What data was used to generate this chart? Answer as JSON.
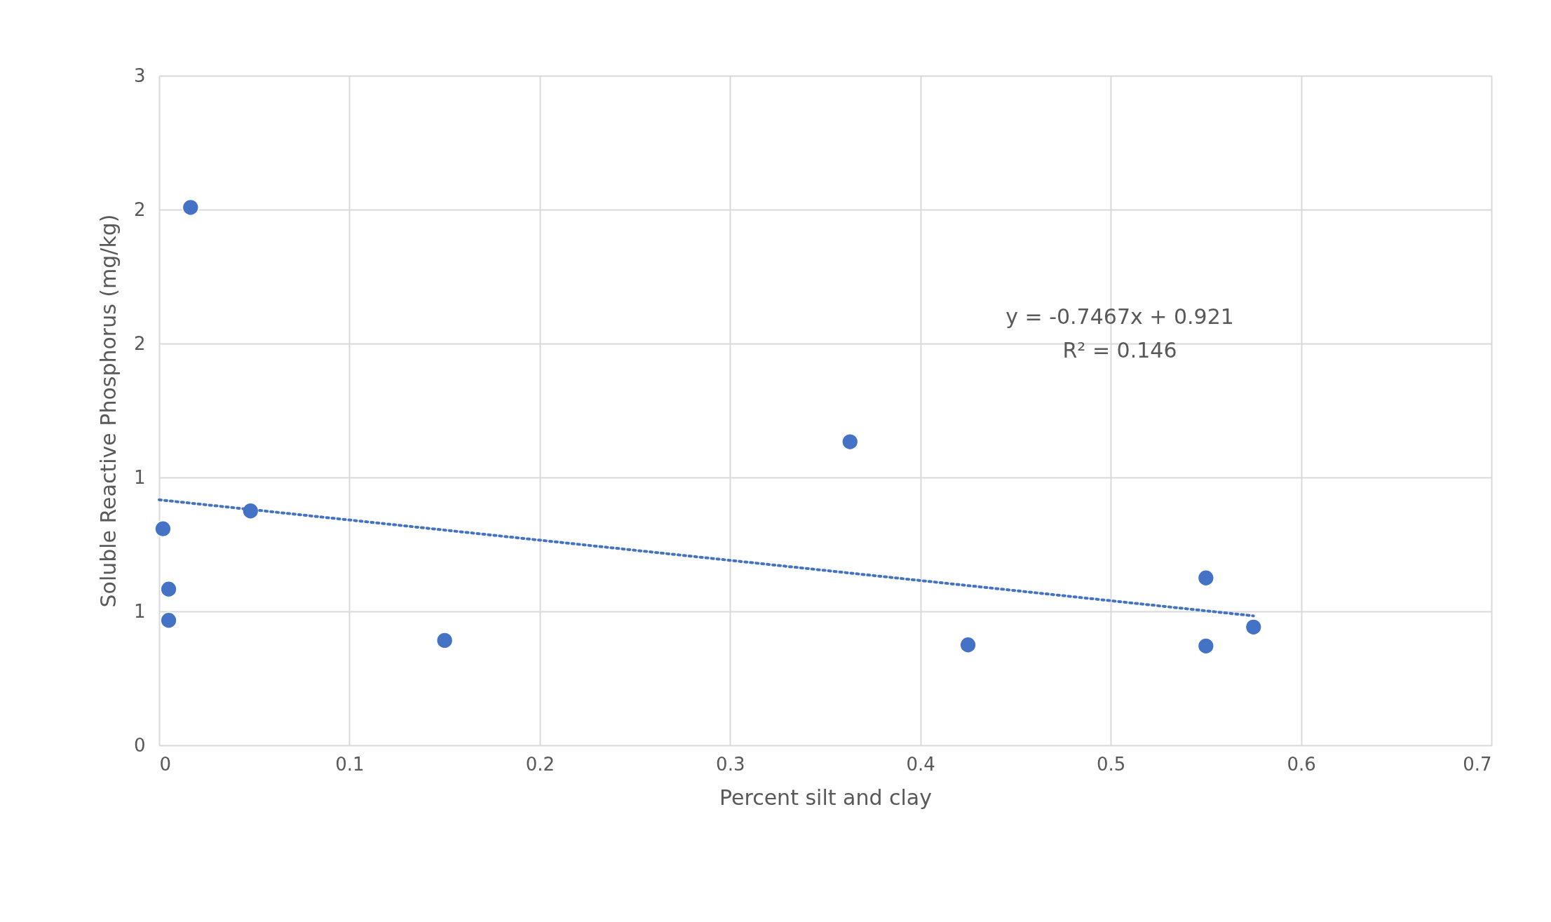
{
  "chart_data": {
    "type": "scatter",
    "xlabel": "Percent silt and clay",
    "ylabel": "Soluble Reactive Phosphorus (mg/kg)",
    "xlim": [
      0,
      0.7
    ],
    "xticks": [
      0,
      0.1,
      0.2,
      0.3,
      0.4,
      0.5,
      0.6,
      0.7
    ],
    "ylim": [
      0,
      3
    ],
    "yticks": [
      0,
      {
        "value": 0.6,
        "label": "1"
      },
      {
        "value": 1.2,
        "label": "1"
      },
      {
        "value": 1.8,
        "label": "2"
      },
      {
        "value": 2.4,
        "label": "2"
      },
      3
    ],
    "grid": true,
    "marker": "circle",
    "annotations": [
      "y = -0.7467x + 0.921",
      "R² = 0.146"
    ],
    "series": [
      {
        "color": "#4472c4",
        "x": [
          0.0165,
          0.048,
          0.002,
          0.005,
          0.005,
          0.15,
          0.363,
          0.425,
          0.55,
          0.55,
          0.575
        ],
        "values": [
          2.41,
          1.05,
          0.97,
          0.7,
          0.56,
          0.47,
          1.36,
          0.45,
          0.75,
          0.445,
          0.53
        ]
      },
      {
        "type": "line",
        "color": "#4472c4",
        "line_style": "dotted",
        "marker": "none",
        "x": [
          0,
          0.575
        ],
        "values": [
          1.1,
          0.58
        ]
      }
    ]
  }
}
